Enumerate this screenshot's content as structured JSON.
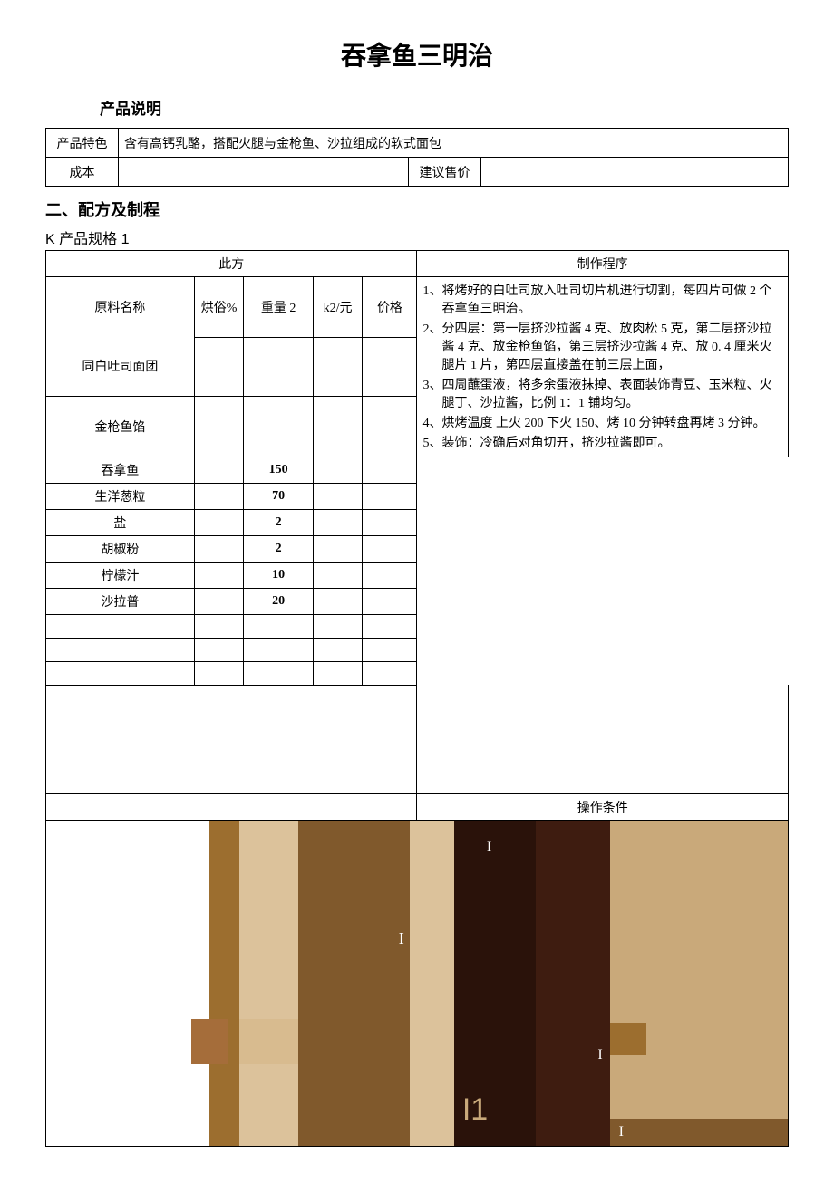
{
  "title": "吞拿鱼三明治",
  "sections": {
    "desc_heading": "产品说明",
    "recipe_heading": "二、配方及制程",
    "spec_heading": "K 产品规格 1"
  },
  "info": {
    "feature_label": "产品特色",
    "feature_text": "含有高钙乳酪，搭配火腿与金枪鱼、沙拉组成的软式面包",
    "cost_label": "成本",
    "cost_value": "",
    "price_label": "建议售价",
    "price_value": ""
  },
  "recipe": {
    "left_header": "此方",
    "right_header": "制作程序",
    "columns": {
      "name": "原料名称",
      "bake": "烘俗%",
      "weight": "重量 2",
      "unit": "k2/元",
      "price": "价格"
    },
    "sub1": "同白吐司面团",
    "sub2": "金枪鱼馅",
    "rows": [
      {
        "name": "吞拿鱼",
        "bake": "",
        "weight": "150",
        "unit": "",
        "price": ""
      },
      {
        "name": "生洋葱粒",
        "bake": "",
        "weight": "70",
        "unit": "",
        "price": ""
      },
      {
        "name": "盐",
        "bake": "",
        "weight": "2",
        "unit": "",
        "price": ""
      },
      {
        "name": "胡椒粉",
        "bake": "",
        "weight": "2",
        "unit": "",
        "price": ""
      },
      {
        "name": "柠檬汁",
        "bake": "",
        "weight": "10",
        "unit": "",
        "price": ""
      },
      {
        "name": "沙拉普",
        "bake": "",
        "weight": "20",
        "unit": "",
        "price": ""
      }
    ],
    "empty_rows": 3,
    "tall_empty_rows": 1
  },
  "process": {
    "steps": [
      "1、将烤好的白吐司放入吐司切片机进行切割，每四片可做 2 个吞拿鱼三明治。",
      "2、分四层：第一层挤沙拉酱 4 克、放肉松 5 克，第二层挤沙拉酱 4 克、放金枪鱼馅，第三层挤沙拉酱 4 克、放 0. 4 厘米火腿片 1 片，第四层直接盖在前三层上面，",
      "3、四周蘸蛋液，将多余蛋液抹掉、表面装饰青豆、玉米粒、火腿丁、沙拉酱，比例 1：1 铺均匀。",
      "4、烘烤温度 上火 200 下火 150、烤 10 分钟转盘再烤 3 分钟。",
      "5、装饰：冷确后对角切开，挤沙拉酱即可。"
    ]
  },
  "conditions_header": "操作条件",
  "image": {
    "colors": {
      "c1": "#d3b88a",
      "c2": "#9c6e2f",
      "c3": "#dcc29b",
      "c4": "#80592c",
      "c5": "#dcc29b",
      "c6": "#2a120a",
      "c7": "#3e1c10",
      "c8": "#c9a97a",
      "accent1": "#d8bb8f",
      "accent2": "#a56d3a",
      "accent3": "#ffffff"
    },
    "widths": [
      22,
      4,
      8,
      15,
      6,
      11,
      10,
      24
    ],
    "marks": {
      "m1": "I",
      "m2": "I1"
    }
  }
}
